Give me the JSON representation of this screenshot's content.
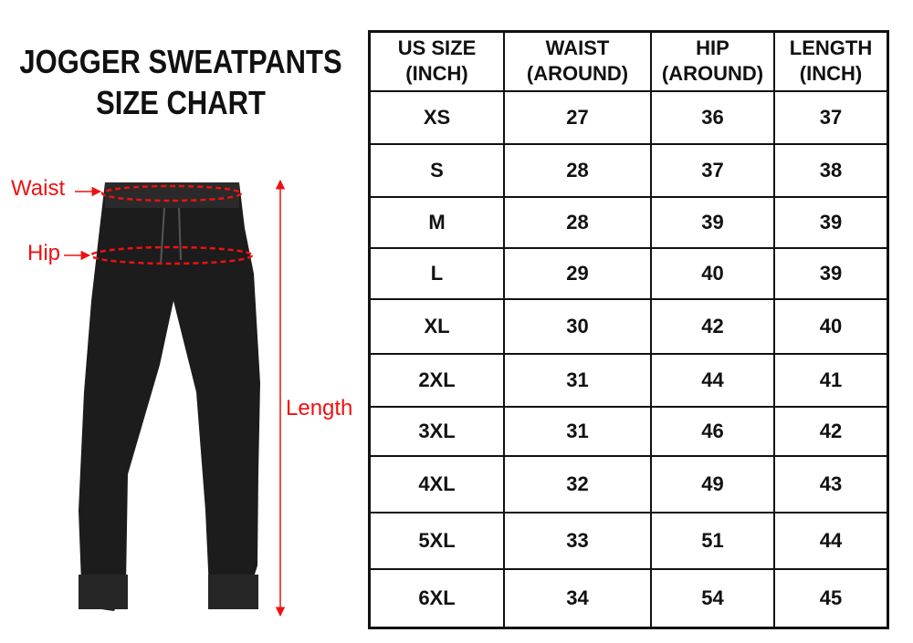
{
  "title": {
    "line1": "JOGGER SWEATPANTS",
    "line2": "SIZE CHART"
  },
  "annotations": {
    "waist": "Waist",
    "hip": "Hip",
    "length": "Length",
    "color": "#e11111"
  },
  "table": {
    "headers": [
      {
        "line1": "US SIZE",
        "line2": "(INCH)"
      },
      {
        "line1": "WAIST",
        "line2": "(AROUND)"
      },
      {
        "line1": "HIP",
        "line2": "(AROUND)"
      },
      {
        "line1": "LENGTH",
        "line2": "(INCH)"
      }
    ],
    "rows": [
      [
        "XS",
        "27",
        "36",
        "37"
      ],
      [
        "S",
        "28",
        "37",
        "38"
      ],
      [
        "M",
        "28",
        "39",
        "39"
      ],
      [
        "L",
        "29",
        "40",
        "39"
      ],
      [
        "XL",
        "30",
        "42",
        "40"
      ],
      [
        "2XL",
        "31",
        "44",
        "41"
      ],
      [
        "3XL",
        "31",
        "46",
        "42"
      ],
      [
        "4XL",
        "32",
        "49",
        "43"
      ],
      [
        "5XL",
        "33",
        "51",
        "44"
      ],
      [
        "6XL",
        "34",
        "54",
        "45"
      ]
    ]
  }
}
